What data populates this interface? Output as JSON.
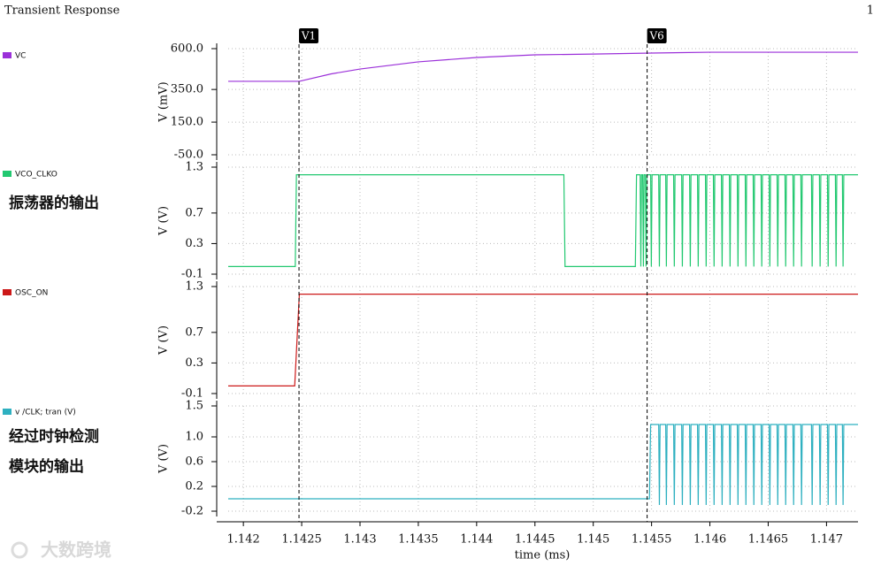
{
  "title": "Transient Response",
  "page_number": "1",
  "annotations": [
    "振荡器的输出",
    "经过时钟检测",
    "模块的输出"
  ],
  "watermark": "大数跨境",
  "x_axis": {
    "label": "time (ms)",
    "xlim": [
      1.14187,
      1.14727
    ],
    "xticks": [
      1.142,
      1.1425,
      1.143,
      1.1435,
      1.144,
      1.1445,
      1.145,
      1.1455,
      1.146,
      1.1465,
      1.147
    ]
  },
  "cursors": [
    {
      "label": "V1",
      "x": 1.142477
    },
    {
      "label": "V6",
      "x": 1.145462
    }
  ],
  "grid": true,
  "chart_data": [
    {
      "type": "line",
      "ylabel": "V (mV)",
      "ylim": [
        -50,
        600
      ],
      "yticks": [
        {
          "value": 600,
          "label": "600.0"
        },
        {
          "value": 350,
          "label": "350.0"
        },
        {
          "value": 150,
          "label": "150.0"
        },
        {
          "value": -50,
          "label": "-50.0"
        }
      ],
      "series": [
        {
          "name": "VC",
          "color": "#9b30d9",
          "x": [
            1.14187,
            1.14248,
            1.14275,
            1.143,
            1.1435,
            1.144,
            1.1445,
            1.145,
            1.1455,
            1.146,
            1.147,
            1.14727
          ],
          "values": [
            400,
            400,
            445,
            475,
            519,
            546,
            562,
            567,
            573,
            578,
            578,
            578
          ]
        }
      ]
    },
    {
      "type": "line",
      "ylabel": "V (V)",
      "ylim": [
        -0.1,
        1.3
      ],
      "yticks": [
        1.3,
        0.7,
        0.3,
        -0.1
      ],
      "series": [
        {
          "name": "VCO_CLKO",
          "color": "#22c870",
          "x": [
            1.14187,
            1.142445,
            1.142455,
            1.144748,
            1.144758,
            1.145361,
            1.145371,
            1.145402,
            1.145408,
            1.145414,
            1.145424,
            1.14543,
            1.145436,
            1.145447,
            1.145453,
            1.145459,
            1.145492,
            1.145498,
            1.145504,
            1.145561,
            1.145567,
            1.145573,
            1.145621,
            1.145627,
            1.145633,
            1.145689,
            1.145695,
            1.145701,
            1.145758,
            1.145764,
            1.14577,
            1.145826,
            1.145832,
            1.145838,
            1.145894,
            1.1459,
            1.145906,
            1.145962,
            1.145968,
            1.145974,
            1.14603,
            1.146036,
            1.146042,
            1.146099,
            1.146105,
            1.146111,
            1.146167,
            1.146173,
            1.146179,
            1.146235,
            1.146241,
            1.146247,
            1.146303,
            1.146309,
            1.146315,
            1.146371,
            1.146377,
            1.146383,
            1.146439,
            1.146445,
            1.146451,
            1.146508,
            1.146514,
            1.14652,
            1.146576,
            1.146582,
            1.146588,
            1.146644,
            1.14665,
            1.146656,
            1.146712,
            1.146718,
            1.146724,
            1.14678,
            1.146786,
            1.146792,
            1.146871,
            1.146877,
            1.146883,
            1.146939,
            1.146945,
            1.146951,
            1.147008,
            1.147014,
            1.14702,
            1.147076,
            1.147082,
            1.147088,
            1.147136,
            1.147142,
            1.147148,
            1.14727
          ],
          "values": [
            0,
            0,
            1.2,
            1.2,
            0,
            0,
            1.2,
            1.2,
            0,
            1.2,
            1.2,
            0,
            1.2,
            1.2,
            0,
            1.2,
            1.2,
            0,
            1.2,
            1.2,
            0,
            1.2,
            1.2,
            0,
            1.2,
            1.2,
            0,
            1.2,
            1.2,
            0,
            1.2,
            1.2,
            0,
            1.2,
            1.2,
            0,
            1.2,
            1.2,
            0,
            1.2,
            1.2,
            0,
            1.2,
            1.2,
            0,
            1.2,
            1.2,
            0,
            1.2,
            1.2,
            0,
            1.2,
            1.2,
            0,
            1.2,
            1.2,
            0,
            1.2,
            1.2,
            0,
            1.2,
            1.2,
            0,
            1.2,
            1.2,
            0,
            1.2,
            1.2,
            0,
            1.2,
            1.2,
            0,
            1.2,
            1.2,
            0,
            1.2,
            1.2,
            0,
            1.2,
            1.2,
            0,
            1.2,
            1.2,
            0,
            1.2,
            1.2,
            0,
            1.2,
            1.2,
            0,
            1.2,
            1.2
          ]
        }
      ]
    },
    {
      "type": "line",
      "ylabel": "V (V)",
      "ylim": [
        -0.1,
        1.3
      ],
      "yticks": [
        1.3,
        0.7,
        0.3,
        -0.1
      ],
      "series": [
        {
          "name": "OSC_ON",
          "color": "#cc1818",
          "x": [
            1.14187,
            1.14244,
            1.14248,
            1.14727
          ],
          "values": [
            0,
            0,
            1.2,
            1.2
          ]
        }
      ]
    },
    {
      "type": "line",
      "ylabel": "V (V)",
      "ylim": [
        -0.2,
        1.5
      ],
      "yticks": [
        1.5,
        {
          "value": 1,
          "label": "1.0"
        },
        0.6,
        0.2,
        -0.2
      ],
      "series": [
        {
          "name": "v /CLK; tran (V)",
          "color": "#2eb0c0",
          "x": [
            1.14187,
            1.145482,
            1.145492,
            1.145561,
            1.145567,
            1.145573,
            1.145621,
            1.145627,
            1.145633,
            1.145689,
            1.145695,
            1.145701,
            1.145758,
            1.145764,
            1.14577,
            1.145826,
            1.145832,
            1.145838,
            1.145894,
            1.1459,
            1.145906,
            1.145962,
            1.145968,
            1.145974,
            1.14603,
            1.146036,
            1.146042,
            1.146099,
            1.146105,
            1.146111,
            1.146167,
            1.146173,
            1.146179,
            1.146235,
            1.146241,
            1.146247,
            1.146303,
            1.146309,
            1.146315,
            1.146371,
            1.146377,
            1.146383,
            1.146439,
            1.146445,
            1.146451,
            1.146508,
            1.146514,
            1.14652,
            1.146576,
            1.146582,
            1.146588,
            1.146644,
            1.14665,
            1.146656,
            1.146712,
            1.146718,
            1.146724,
            1.14678,
            1.146786,
            1.146792,
            1.146871,
            1.146877,
            1.146883,
            1.146939,
            1.146945,
            1.146951,
            1.147008,
            1.147014,
            1.14702,
            1.147076,
            1.147082,
            1.147088,
            1.147136,
            1.147142,
            1.147148,
            1.14727
          ],
          "values": [
            0,
            0,
            1.2,
            1.2,
            -0.1,
            1.2,
            1.2,
            -0.1,
            1.2,
            1.2,
            -0.1,
            1.2,
            1.2,
            -0.1,
            1.2,
            1.2,
            -0.1,
            1.2,
            1.2,
            -0.1,
            1.2,
            1.2,
            -0.1,
            1.2,
            1.2,
            -0.1,
            1.2,
            1.2,
            -0.1,
            1.2,
            1.2,
            -0.1,
            1.2,
            1.2,
            -0.1,
            1.2,
            1.2,
            -0.1,
            1.2,
            1.2,
            -0.1,
            1.2,
            1.2,
            -0.1,
            1.2,
            1.2,
            -0.1,
            1.2,
            1.2,
            -0.1,
            1.2,
            1.2,
            -0.1,
            1.2,
            1.2,
            -0.1,
            1.2,
            1.2,
            -0.1,
            1.2,
            1.2,
            -0.1,
            1.2,
            1.2,
            -0.1,
            1.2,
            1.2,
            -0.1,
            1.2,
            1.2,
            -0.1,
            1.2,
            1.2,
            -0.1,
            1.2,
            1.2
          ]
        }
      ]
    }
  ]
}
